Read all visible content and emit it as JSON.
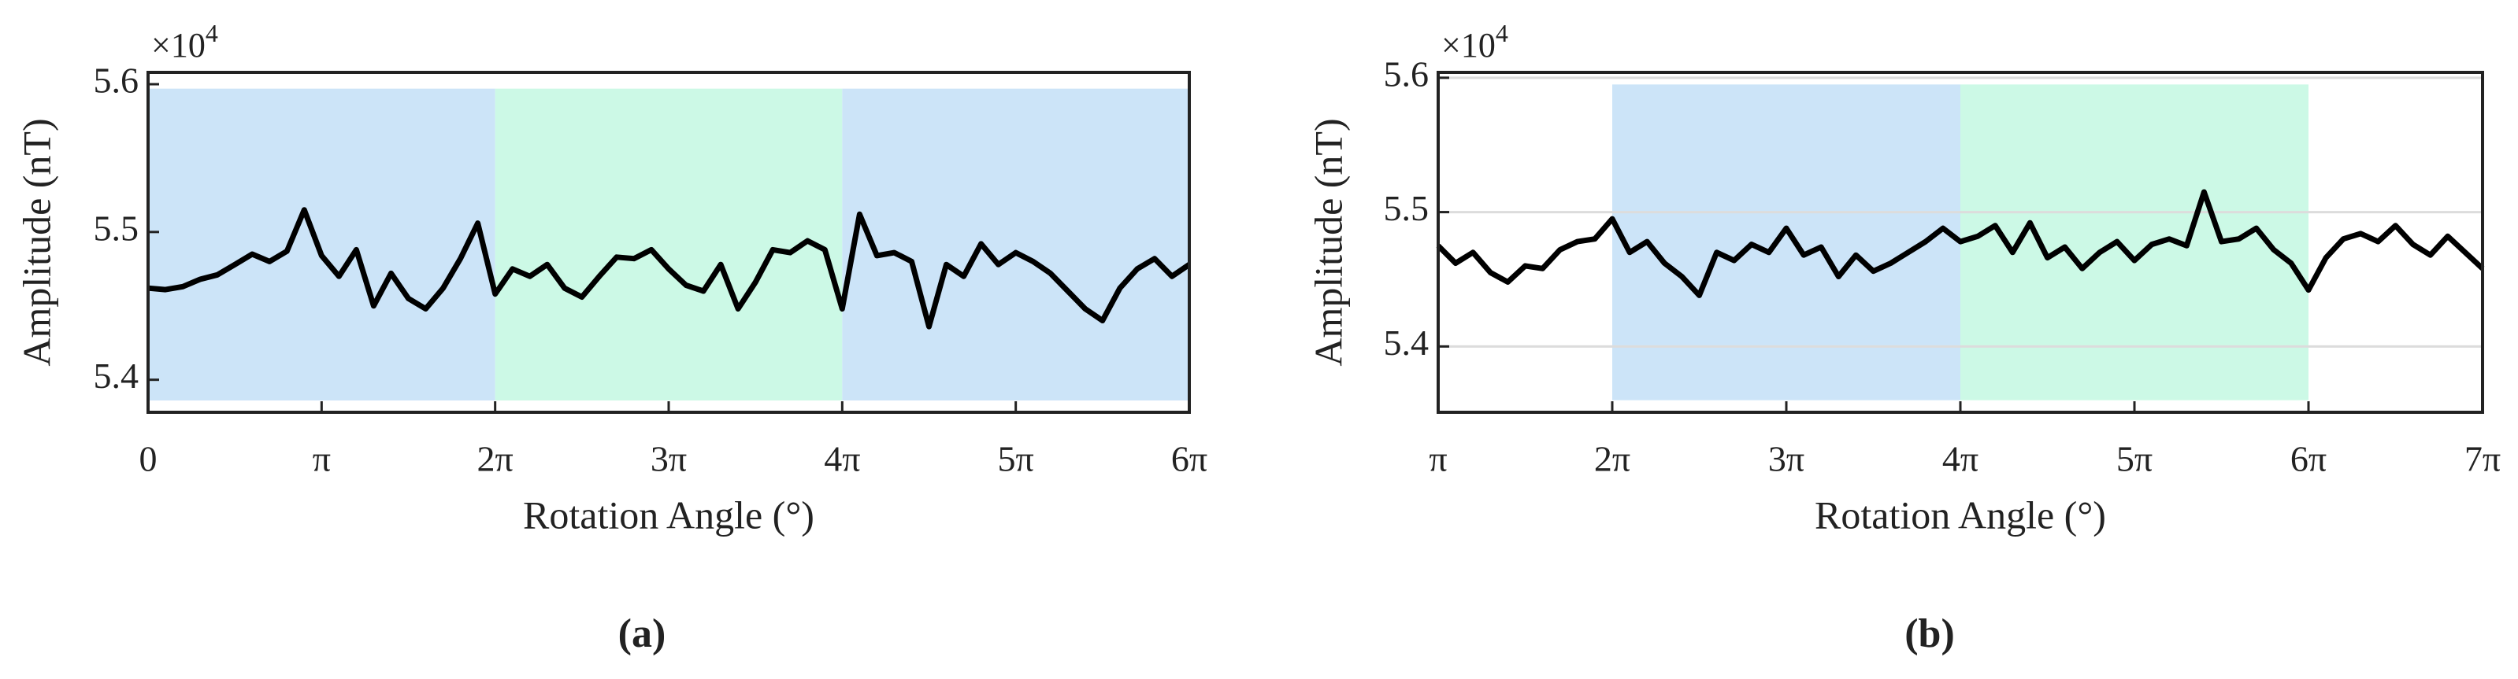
{
  "chart_data": [
    {
      "type": "line",
      "caption": "(a)",
      "x_label": "Rotation Angle (°)",
      "y_label": "Amplitude (nT)",
      "y_multiplier": {
        "base": "×10",
        "exponent": "4"
      },
      "xlim": [
        0,
        6
      ],
      "xticks": [
        0,
        {
          "value": 1,
          "label": "π"
        },
        {
          "value": 2,
          "label": "2π"
        },
        {
          "value": 3,
          "label": "3π"
        },
        {
          "value": 4,
          "label": "4π"
        },
        {
          "value": 5,
          "label": "5π"
        },
        {
          "value": 6,
          "label": "6π"
        }
      ],
      "ylim": [
        5.378,
        5.608
      ],
      "yticks": [
        5.4,
        5.5,
        5.6
      ],
      "grid": false,
      "regions": [
        {
          "x": [
            0,
            2
          ],
          "y": [
            5.386,
            5.597
          ],
          "color": "#cce4f8"
        },
        {
          "x": [
            2,
            4
          ],
          "y": [
            5.386,
            5.597
          ],
          "color": "#ccf9e6"
        },
        {
          "x": [
            4,
            6
          ],
          "y": [
            5.386,
            5.597
          ],
          "color": "#cce4f8"
        }
      ],
      "x": [
        0,
        0.1,
        0.2,
        0.3,
        0.4,
        0.5,
        0.6,
        0.7,
        0.8,
        0.9,
        1,
        1.1,
        1.2,
        1.3,
        1.4,
        1.5,
        1.6,
        1.7,
        1.8,
        1.9,
        2,
        2.1,
        2.2,
        2.3,
        2.4,
        2.5,
        2.6,
        2.7,
        2.8,
        2.9,
        3,
        3.1,
        3.2,
        3.3,
        3.4,
        3.5,
        3.6,
        3.7,
        3.8,
        3.9,
        4,
        4.1,
        4.2,
        4.3,
        4.4,
        4.5,
        4.6,
        4.7,
        4.8,
        4.9,
        5,
        5.1,
        5.2,
        5.3,
        5.4,
        5.5,
        5.6,
        5.7,
        5.8,
        5.9,
        6
      ],
      "series": [
        {
          "color": "#000000",
          "values": [
            5.462,
            5.461,
            5.463,
            5.468,
            5.471,
            5.478,
            5.485,
            5.48,
            5.487,
            5.515,
            5.484,
            5.47,
            5.488,
            5.45,
            5.472,
            5.455,
            5.448,
            5.462,
            5.482,
            5.506,
            5.458,
            5.475,
            5.47,
            5.478,
            5.462,
            5.456,
            5.47,
            5.483,
            5.482,
            5.488,
            5.475,
            5.464,
            5.46,
            5.478,
            5.448,
            5.466,
            5.488,
            5.486,
            5.494,
            5.488,
            5.448,
            5.512,
            5.484,
            5.486,
            5.48,
            5.436,
            5.478,
            5.47,
            5.492,
            5.478,
            5.486,
            5.48,
            5.472,
            5.46,
            5.448,
            5.44,
            5.462,
            5.475,
            5.482,
            5.47,
            5.478
          ]
        }
      ]
    },
    {
      "type": "line",
      "caption": "(b)",
      "x_label": "Rotation Angle (°)",
      "y_label": "Amplitude (nT)",
      "y_multiplier": {
        "base": "×10",
        "exponent": "4"
      },
      "xlim": [
        1,
        7
      ],
      "xticks": [
        {
          "value": 1,
          "label": "π"
        },
        {
          "value": 2,
          "label": "2π"
        },
        {
          "value": 3,
          "label": "3π"
        },
        {
          "value": 4,
          "label": "4π"
        },
        {
          "value": 5,
          "label": "5π"
        },
        {
          "value": 6,
          "label": "6π"
        },
        {
          "value": 7,
          "label": "7π"
        }
      ],
      "ylim": [
        5.351,
        5.604
      ],
      "yticks": [
        5.4,
        5.5,
        5.6
      ],
      "grid": true,
      "regions": [
        {
          "x": [
            2,
            4
          ],
          "y": [
            5.36,
            5.595
          ],
          "color": "#cce4f8"
        },
        {
          "x": [
            4,
            6
          ],
          "y": [
            5.36,
            5.595
          ],
          "color": "#ccf9e6"
        }
      ],
      "x": [
        1,
        1.1,
        1.2,
        1.3,
        1.4,
        1.5,
        1.6,
        1.7,
        1.8,
        1.9,
        2,
        2.1,
        2.2,
        2.3,
        2.4,
        2.5,
        2.6,
        2.7,
        2.8,
        2.9,
        3,
        3.1,
        3.2,
        3.3,
        3.4,
        3.5,
        3.6,
        3.7,
        3.8,
        3.9,
        4,
        4.1,
        4.2,
        4.3,
        4.4,
        4.5,
        4.6,
        4.7,
        4.8,
        4.9,
        5,
        5.1,
        5.2,
        5.3,
        5.4,
        5.5,
        5.6,
        5.7,
        5.8,
        5.9,
        6,
        6.1,
        6.2,
        6.3,
        6.4,
        6.5,
        6.6,
        6.7,
        6.8,
        6.9,
        7
      ],
      "series": [
        {
          "color": "#000000",
          "values": [
            5.475,
            5.462,
            5.47,
            5.455,
            5.448,
            5.46,
            5.458,
            5.472,
            5.478,
            5.48,
            5.495,
            5.47,
            5.478,
            5.462,
            5.452,
            5.438,
            5.47,
            5.464,
            5.476,
            5.47,
            5.488,
            5.468,
            5.474,
            5.452,
            5.468,
            5.456,
            5.462,
            5.47,
            5.478,
            5.488,
            5.478,
            5.482,
            5.49,
            5.47,
            5.492,
            5.466,
            5.474,
            5.458,
            5.47,
            5.478,
            5.464,
            5.476,
            5.48,
            5.475,
            5.515,
            5.478,
            5.48,
            5.488,
            5.472,
            5.462,
            5.442,
            5.466,
            5.48,
            5.484,
            5.478,
            5.49,
            5.476,
            5.468,
            5.482,
            5.47,
            5.458
          ]
        }
      ]
    }
  ]
}
